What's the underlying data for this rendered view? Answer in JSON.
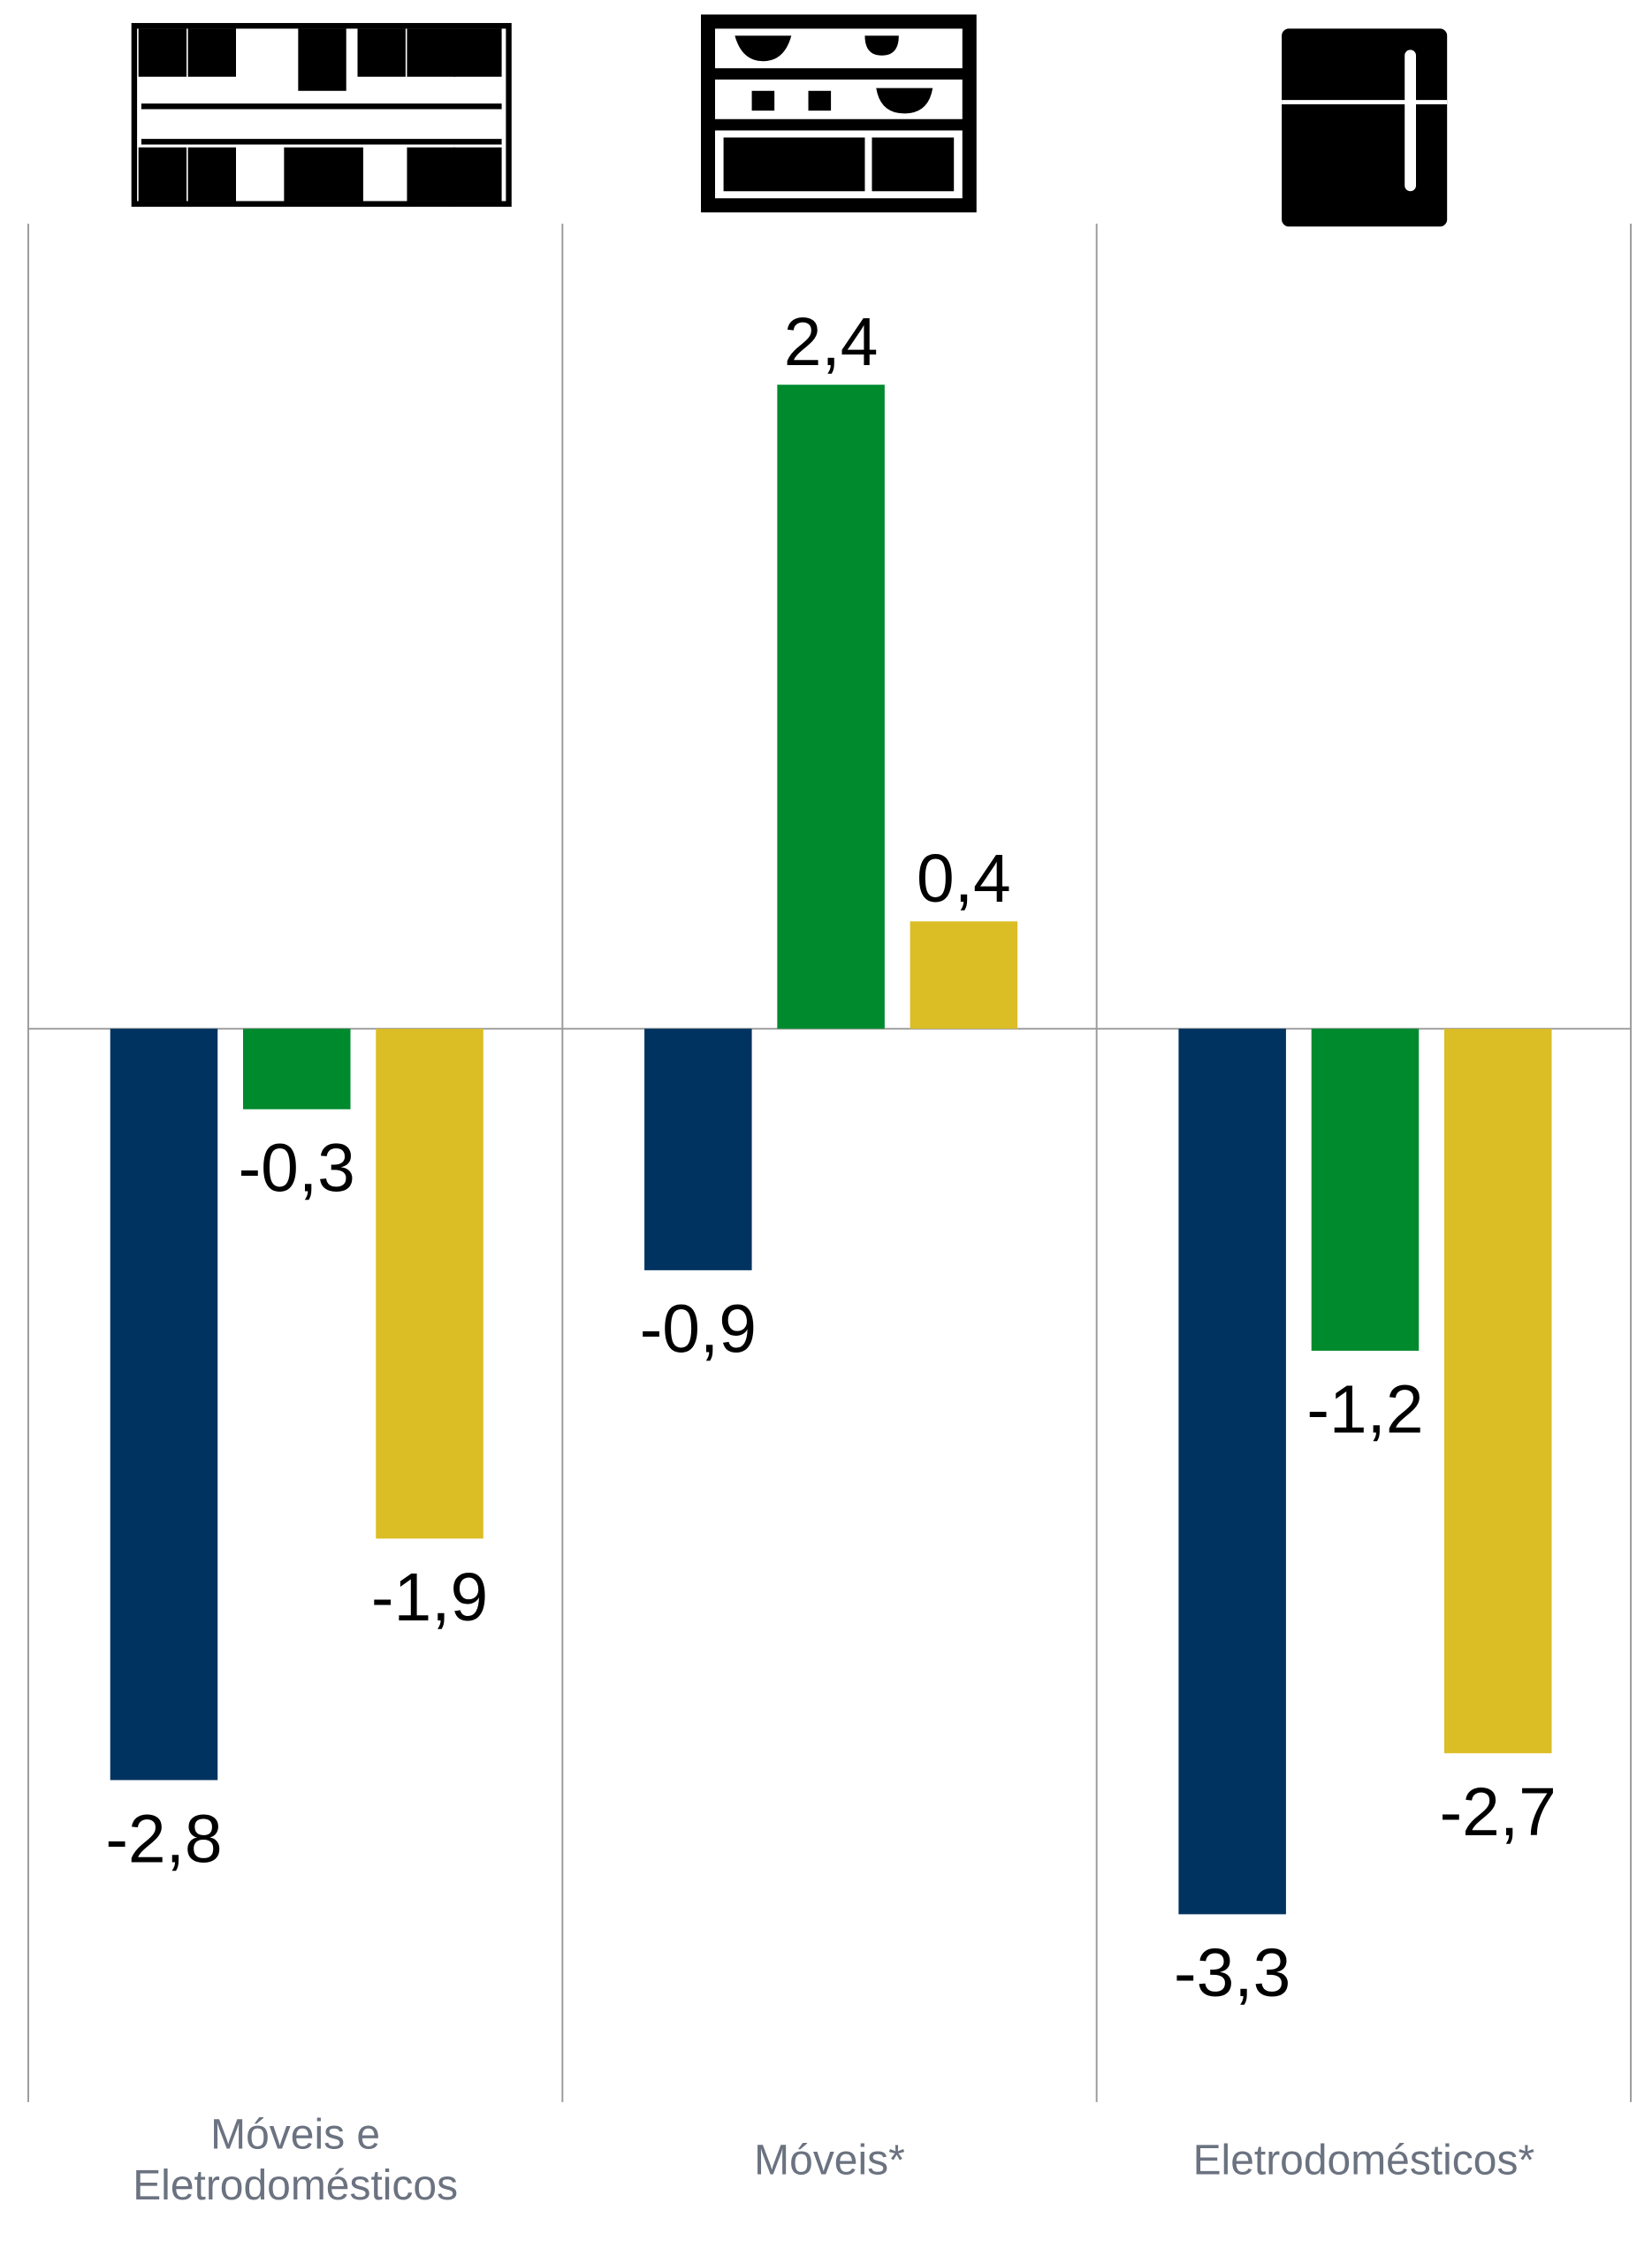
{
  "chart_data": {
    "type": "bar",
    "categories": [
      "Móveis e Eletrodomésticos",
      "Móveis*",
      "Eletrodomésticos*"
    ],
    "series": [
      {
        "color": "#003360",
        "values": [
          -2.8,
          -0.9,
          -3.3
        ],
        "value_labels": [
          "-2,8",
          "-0,9",
          "-3,3"
        ]
      },
      {
        "color": "#008a2e",
        "values": [
          -0.3,
          2.4,
          -1.2
        ],
        "value_labels": [
          "-0,3",
          "2,4",
          "-1,2"
        ]
      },
      {
        "color": "#dbbd25",
        "values": [
          -1.9,
          0.4,
          -2.7
        ],
        "value_labels": [
          "-1,9",
          "0,4",
          "-2,7"
        ]
      }
    ],
    "ylim": [
      -4,
      3
    ]
  }
}
